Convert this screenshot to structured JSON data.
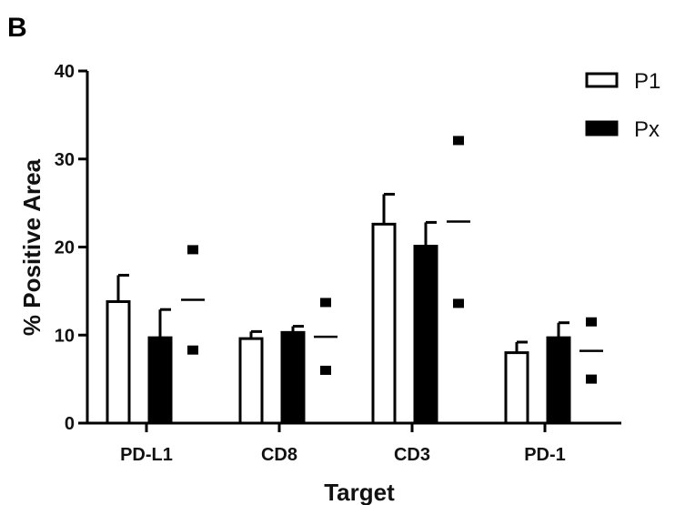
{
  "panel_label": "B",
  "chart_data": {
    "type": "bar",
    "xlabel": "Target",
    "ylabel": "% Positive Area",
    "ylim": [
      0,
      40
    ],
    "yticks": [
      "0",
      "10",
      "20",
      "30",
      "40"
    ],
    "categories": [
      "PD-L1",
      "CD8",
      "CD3",
      "PD-1"
    ],
    "series": [
      {
        "name": "P1",
        "values": [
          13.8,
          9.6,
          22.6,
          8.0
        ],
        "errors": [
          3.0,
          0.8,
          3.4,
          1.2
        ],
        "fill": "#ffffff"
      },
      {
        "name": "Px",
        "values": [
          9.7,
          10.3,
          20.1,
          9.7
        ],
        "errors": [
          3.2,
          0.7,
          2.7,
          1.7
        ],
        "fill": "#000000"
      }
    ],
    "points": [
      {
        "category": "PD-L1",
        "values": [
          19.7,
          8.3
        ],
        "mean": 14.0
      },
      {
        "category": "CD8",
        "values": [
          13.7,
          6.0
        ],
        "mean": 9.8
      },
      {
        "category": "CD3",
        "values": [
          32.1,
          13.6
        ],
        "mean": 22.9
      },
      {
        "category": "PD-1",
        "values": [
          11.5,
          5.0
        ],
        "mean": 8.2
      }
    ],
    "legend_position": "top-right",
    "grid": false
  }
}
